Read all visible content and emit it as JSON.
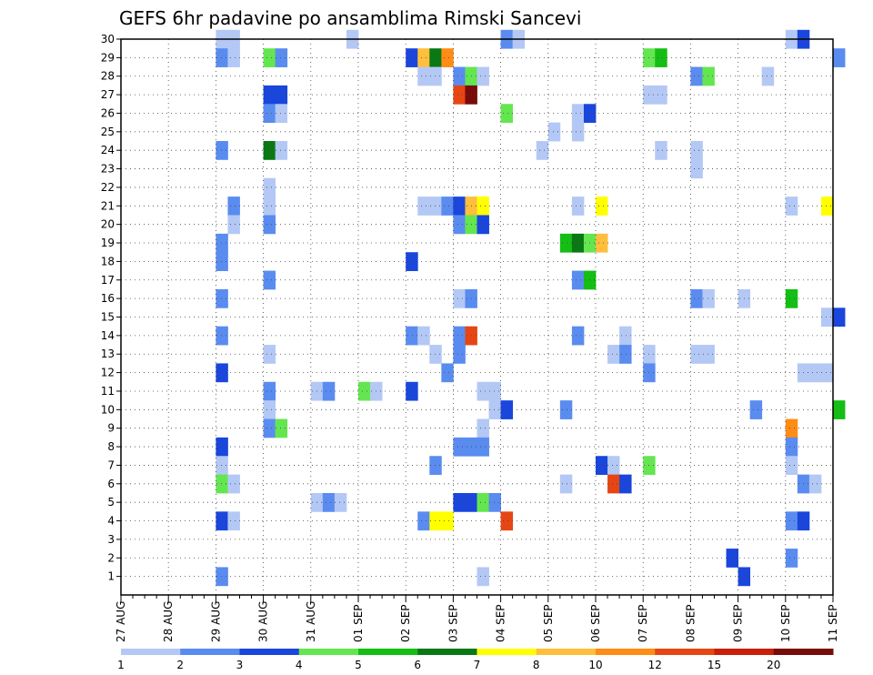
{
  "chart_data": {
    "type": "heatmap",
    "title": "GEFS 6hr padavine po ansamblima Rimski Sancevi",
    "x_tick_labels": [
      "27 AUG",
      "28 AUG",
      "29 AUG",
      "30 AUG",
      "31 AUG",
      "01 SEP",
      "02 SEP",
      "03 SEP",
      "04 SEP",
      "05 SEP",
      "06 SEP",
      "07 SEP",
      "08 SEP",
      "09 SEP",
      "10 SEP",
      "11 SEP"
    ],
    "y_tick_labels": [
      "1",
      "2",
      "3",
      "4",
      "5",
      "6",
      "7",
      "8",
      "9",
      "10",
      "11",
      "12",
      "13",
      "14",
      "15",
      "16",
      "17",
      "18",
      "19",
      "20",
      "21",
      "22",
      "23",
      "24",
      "25",
      "26",
      "27",
      "28",
      "29",
      "30"
    ],
    "xlim": [
      0,
      15
    ],
    "ylim": [
      0,
      30
    ],
    "steps_per_day": 4,
    "grid": true,
    "legend_position": "bottom",
    "colorbar": {
      "labels": [
        "1",
        "2",
        "3",
        "4",
        "5",
        "6",
        "7",
        "8",
        "10",
        "12",
        "15",
        "20"
      ],
      "colors": [
        "#b4c8f5",
        "#5a8cf0",
        "#1a46dc",
        "#64e650",
        "#14be14",
        "#0a7814",
        "#ffff00",
        "#ffbe3c",
        "#ff8c14",
        "#e64614",
        "#c81e0a",
        "#780a0a"
      ]
    },
    "cells": [
      [
        2.0,
        30,
        0
      ],
      [
        2.25,
        30,
        0
      ],
      [
        4.75,
        30,
        0
      ],
      [
        8.0,
        30,
        1
      ],
      [
        8.25,
        30,
        0
      ],
      [
        14.0,
        30,
        0
      ],
      [
        14.25,
        30,
        2
      ],
      [
        2.0,
        29,
        1
      ],
      [
        2.25,
        29,
        0
      ],
      [
        3.0,
        29,
        3
      ],
      [
        3.25,
        29,
        1
      ],
      [
        6.0,
        29,
        2
      ],
      [
        6.25,
        29,
        7
      ],
      [
        6.5,
        29,
        5
      ],
      [
        6.75,
        29,
        8
      ],
      [
        11.0,
        29,
        3
      ],
      [
        11.25,
        29,
        4
      ],
      [
        15.0,
        29,
        1
      ],
      [
        6.25,
        28,
        0
      ],
      [
        6.5,
        28,
        0
      ],
      [
        7.0,
        28,
        1
      ],
      [
        7.25,
        28,
        3
      ],
      [
        7.5,
        28,
        0
      ],
      [
        12.0,
        28,
        1
      ],
      [
        12.25,
        28,
        3
      ],
      [
        13.5,
        28,
        0
      ],
      [
        3.0,
        27,
        2
      ],
      [
        3.25,
        27,
        2
      ],
      [
        7.0,
        27,
        9
      ],
      [
        7.25,
        27,
        11
      ],
      [
        11.0,
        27,
        0
      ],
      [
        11.25,
        27,
        0
      ],
      [
        3.0,
        26,
        1
      ],
      [
        3.25,
        26,
        0
      ],
      [
        8.0,
        26,
        3
      ],
      [
        9.5,
        26,
        0
      ],
      [
        9.75,
        26,
        2
      ],
      [
        9.0,
        25,
        0
      ],
      [
        9.5,
        25,
        0
      ],
      [
        2.0,
        24,
        1
      ],
      [
        3.0,
        24,
        5
      ],
      [
        3.25,
        24,
        0
      ],
      [
        8.75,
        24,
        0
      ],
      [
        11.25,
        24,
        0
      ],
      [
        12.0,
        24,
        0
      ],
      [
        12.0,
        23,
        0
      ],
      [
        3.0,
        22,
        0
      ],
      [
        2.25,
        21,
        1
      ],
      [
        3.0,
        21,
        0
      ],
      [
        6.25,
        21,
        0
      ],
      [
        6.5,
        21,
        0
      ],
      [
        6.75,
        21,
        1
      ],
      [
        7.0,
        21,
        2
      ],
      [
        7.25,
        21,
        7
      ],
      [
        7.5,
        21,
        6
      ],
      [
        9.5,
        21,
        0
      ],
      [
        10.0,
        21,
        6
      ],
      [
        14.0,
        21,
        0
      ],
      [
        14.75,
        21,
        6
      ],
      [
        2.25,
        20,
        0
      ],
      [
        3.0,
        20,
        1
      ],
      [
        7.0,
        20,
        1
      ],
      [
        7.25,
        20,
        3
      ],
      [
        7.5,
        20,
        2
      ],
      [
        2.0,
        19,
        1
      ],
      [
        9.25,
        19,
        4
      ],
      [
        9.5,
        19,
        5
      ],
      [
        9.75,
        19,
        3
      ],
      [
        10.0,
        19,
        7
      ],
      [
        2.0,
        18,
        1
      ],
      [
        6.0,
        18,
        2
      ],
      [
        3.0,
        17,
        1
      ],
      [
        9.5,
        17,
        1
      ],
      [
        9.75,
        17,
        4
      ],
      [
        2.0,
        16,
        1
      ],
      [
        7.0,
        16,
        0
      ],
      [
        7.25,
        16,
        1
      ],
      [
        12.0,
        16,
        1
      ],
      [
        12.25,
        16,
        0
      ],
      [
        13.0,
        16,
        0
      ],
      [
        14.0,
        16,
        4
      ],
      [
        14.75,
        15,
        0
      ],
      [
        15.0,
        15,
        2
      ],
      [
        2.0,
        14,
        1
      ],
      [
        6.0,
        14,
        1
      ],
      [
        6.25,
        14,
        0
      ],
      [
        7.0,
        14,
        1
      ],
      [
        7.25,
        14,
        9
      ],
      [
        9.5,
        14,
        1
      ],
      [
        10.5,
        14,
        0
      ],
      [
        3.0,
        13,
        0
      ],
      [
        6.5,
        13,
        0
      ],
      [
        7.0,
        13,
        1
      ],
      [
        10.25,
        13,
        0
      ],
      [
        10.5,
        13,
        1
      ],
      [
        11.0,
        13,
        0
      ],
      [
        12.0,
        13,
        0
      ],
      [
        12.25,
        13,
        0
      ],
      [
        2.0,
        12,
        2
      ],
      [
        6.75,
        12,
        1
      ],
      [
        11.0,
        12,
        1
      ],
      [
        14.25,
        12,
        0
      ],
      [
        14.5,
        12,
        0
      ],
      [
        14.75,
        12,
        0
      ],
      [
        3.0,
        11,
        1
      ],
      [
        4.0,
        11,
        0
      ],
      [
        4.25,
        11,
        1
      ],
      [
        5.0,
        11,
        3
      ],
      [
        5.25,
        11,
        0
      ],
      [
        6.0,
        11,
        2
      ],
      [
        7.5,
        11,
        0
      ],
      [
        7.75,
        11,
        0
      ],
      [
        3.0,
        10,
        0
      ],
      [
        7.75,
        10,
        0
      ],
      [
        8.0,
        10,
        2
      ],
      [
        9.25,
        10,
        1
      ],
      [
        13.25,
        10,
        1
      ],
      [
        15.0,
        10,
        4
      ],
      [
        3.0,
        9,
        1
      ],
      [
        3.25,
        9,
        3
      ],
      [
        7.5,
        9,
        0
      ],
      [
        14.0,
        9,
        8
      ],
      [
        2.0,
        8,
        2
      ],
      [
        7.0,
        8,
        1
      ],
      [
        7.25,
        8,
        1
      ],
      [
        7.5,
        8,
        1
      ],
      [
        14.0,
        8,
        1
      ],
      [
        2.0,
        7,
        0
      ],
      [
        6.5,
        7,
        1
      ],
      [
        10.0,
        7,
        2
      ],
      [
        10.25,
        7,
        0
      ],
      [
        11.0,
        7,
        3
      ],
      [
        14.0,
        7,
        0
      ],
      [
        2.0,
        6,
        3
      ],
      [
        2.25,
        6,
        0
      ],
      [
        9.25,
        6,
        0
      ],
      [
        10.25,
        6,
        9
      ],
      [
        10.5,
        6,
        2
      ],
      [
        14.25,
        6,
        1
      ],
      [
        14.5,
        6,
        0
      ],
      [
        4.0,
        5,
        0
      ],
      [
        4.25,
        5,
        1
      ],
      [
        4.5,
        5,
        0
      ],
      [
        7.0,
        5,
        2
      ],
      [
        7.25,
        5,
        2
      ],
      [
        7.5,
        5,
        3
      ],
      [
        7.75,
        5,
        1
      ],
      [
        2.0,
        4,
        2
      ],
      [
        2.25,
        4,
        0
      ],
      [
        6.25,
        4,
        1
      ],
      [
        6.5,
        4,
        6
      ],
      [
        6.75,
        4,
        6
      ],
      [
        8.0,
        4,
        9
      ],
      [
        14.0,
        4,
        1
      ],
      [
        14.25,
        4,
        2
      ],
      [
        12.75,
        2,
        2
      ],
      [
        14.0,
        2,
        1
      ],
      [
        2.0,
        1,
        1
      ],
      [
        7.5,
        1,
        0
      ],
      [
        13.0,
        1,
        2
      ]
    ]
  }
}
